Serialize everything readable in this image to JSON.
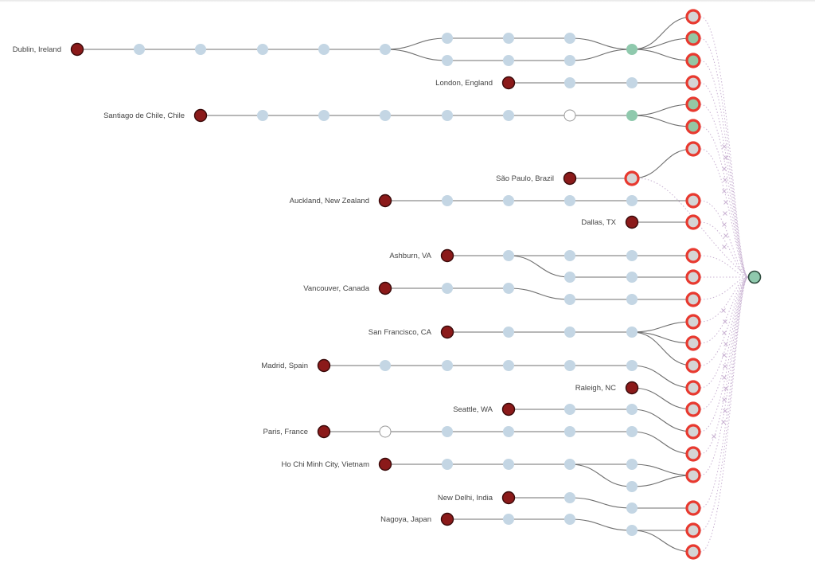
{
  "diagram": {
    "colors": {
      "origin_fill": "#8b1a1a",
      "origin_stroke": "#3a0a0a",
      "hop_fill": "#c4d6e4",
      "hop_white": "#ffffff",
      "hop_white_stroke": "#999999",
      "cluster_fill": "#8fc9ad",
      "endpoint_ring": "#e8392f",
      "endpoint_inner": "#d5d5d5",
      "endpoint_inner_green": "#94c7a4",
      "target_fill": "#8fc9ad",
      "target_stroke": "#2d4a3c",
      "edge": "#6f6f6f",
      "fan": "#c9b2d2"
    },
    "origins": [
      {
        "label": "Dublin, Ireland"
      },
      {
        "label": "London, England"
      },
      {
        "label": "Santiago de Chile, Chile"
      },
      {
        "label": "São Paulo, Brazil"
      },
      {
        "label": "Auckland, New Zealand"
      },
      {
        "label": "Dallas, TX"
      },
      {
        "label": "Ashburn, VA"
      },
      {
        "label": "Vancouver, Canada"
      },
      {
        "label": "San Francisco, CA"
      },
      {
        "label": "Madrid, Spain"
      },
      {
        "label": "Raleigh, NC"
      },
      {
        "label": "Seattle, WA"
      },
      {
        "label": "Paris, France"
      },
      {
        "label": "Ho Chi Minh City, Vietnam"
      },
      {
        "label": "New Delhi, India"
      },
      {
        "label": "Nagoya, Japan"
      }
    ]
  }
}
